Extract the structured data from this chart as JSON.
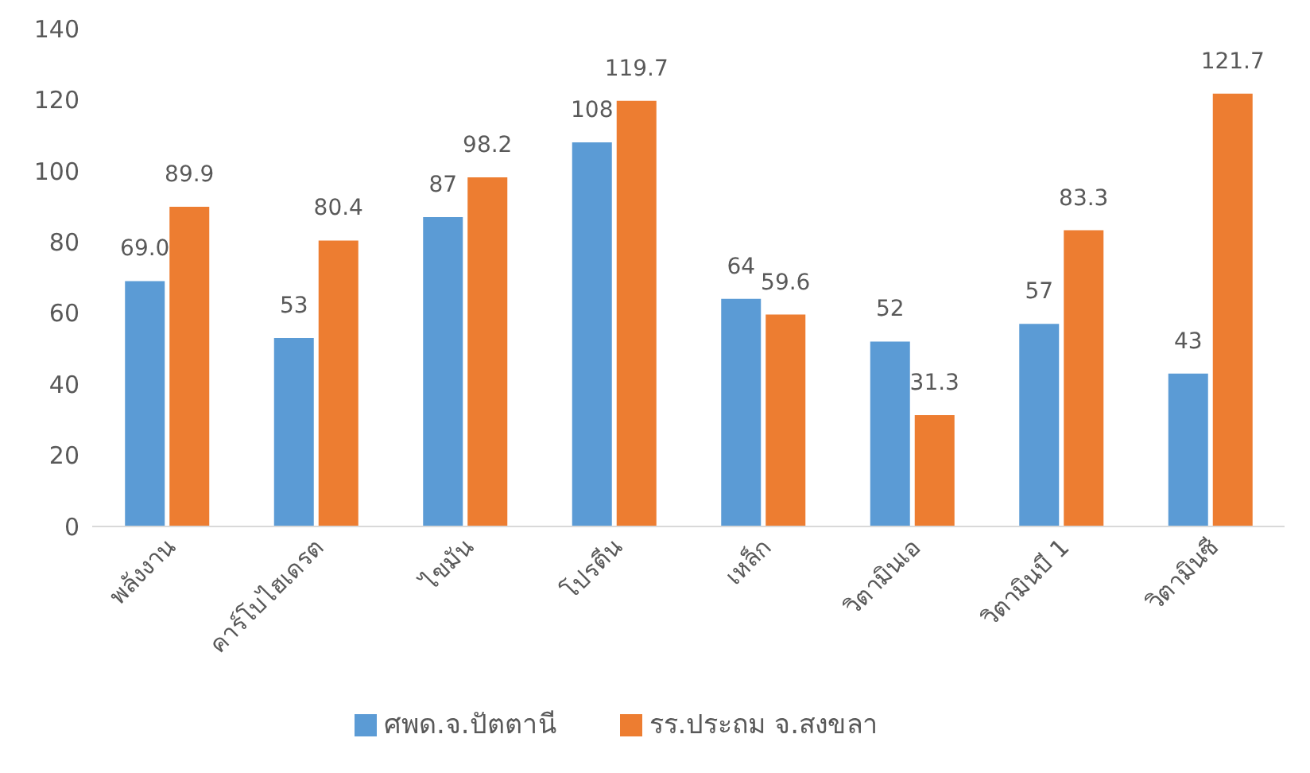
{
  "chart_data": {
    "type": "bar",
    "categories": [
      "พลังงาน",
      "คาร์โบไฮเดรต",
      "ไขมัน",
      "โปรตีน",
      "เหล็ก",
      "วิตามินเอ",
      "วิตามินบี 1",
      "วิตามินซี"
    ],
    "series": [
      {
        "name": "ศพด.จ.ปัตตานี",
        "color": "#5b9bd5",
        "values": [
          69.0,
          53,
          87,
          108,
          64,
          52,
          57,
          43
        ],
        "value_labels": [
          "69.0",
          "53",
          "87",
          "108",
          "64",
          "52",
          "57",
          "43"
        ]
      },
      {
        "name": "รร.ประถม จ.สงขลา",
        "color": "#ed7d31",
        "values": [
          89.9,
          80.4,
          98.2,
          119.7,
          59.6,
          31.3,
          83.3,
          121.7
        ],
        "value_labels": [
          "89.9",
          "80.4",
          "98.2",
          "119.7",
          "59.6",
          "31.3",
          "83.3",
          "121.7"
        ]
      }
    ],
    "ylim": [
      0,
      140
    ],
    "yticks": [
      0,
      20,
      40,
      60,
      80,
      100,
      120,
      140
    ],
    "grid": false,
    "legend": "bottom"
  }
}
